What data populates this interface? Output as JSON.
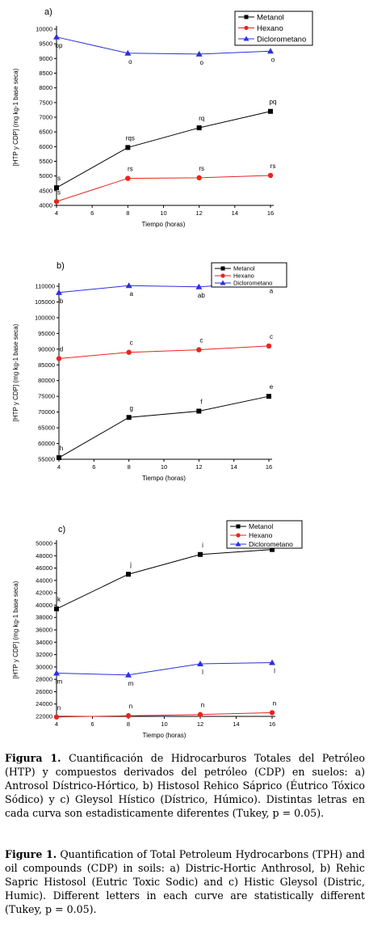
{
  "chart_data": [
    {
      "panel_label": "a)",
      "type": "line",
      "x": [
        4,
        8,
        12,
        16
      ],
      "xticks": [
        4,
        6,
        8,
        10,
        12,
        14,
        16
      ],
      "xlim": [
        4,
        16
      ],
      "ylim": [
        4000,
        10000
      ],
      "yticks": [
        4000,
        4500,
        5000,
        5500,
        6000,
        6500,
        7000,
        7500,
        8000,
        8500,
        9000,
        9500,
        10000
      ],
      "xlabel": "Tiempo (horas)",
      "ylabel": "[HTP y CDP] (mg kg-1 base seca)",
      "legend_position": "top-right",
      "series": [
        {
          "name": "Metanol",
          "color": "#000000",
          "marker": "square",
          "values": [
            4600,
            5970,
            6640,
            7200
          ],
          "point_labels": [
            "s",
            "rqs",
            "rq",
            "pq"
          ]
        },
        {
          "name": "Hexano",
          "color": "#e8251f",
          "marker": "circle",
          "values": [
            4130,
            4920,
            4940,
            5020
          ],
          "point_labels": [
            "s",
            "rs",
            "rs",
            "rs"
          ]
        },
        {
          "name": "Diclorometano",
          "color": "#2b2fe0",
          "marker": "triangle",
          "values": [
            9730,
            9180,
            9150,
            9250
          ],
          "point_labels": [
            "op",
            "o",
            "o",
            "o"
          ]
        }
      ]
    },
    {
      "panel_label": "b)",
      "type": "line",
      "x": [
        4,
        8,
        12,
        16
      ],
      "xticks": [
        4,
        6,
        8,
        10,
        12,
        14,
        16
      ],
      "xlim": [
        4,
        16
      ],
      "ylim": [
        55000,
        110000
      ],
      "yticks": [
        55000,
        60000,
        65000,
        70000,
        75000,
        80000,
        85000,
        90000,
        95000,
        100000,
        105000,
        110000
      ],
      "xlabel": "Tiempo (horas)",
      "ylabel": "[HTP y CDP] (mg kg-1 base seca)",
      "legend_position": "top-right",
      "series": [
        {
          "name": "Metanol",
          "color": "#000000",
          "marker": "square",
          "values": [
            55500,
            68300,
            70300,
            75000
          ],
          "point_labels": [
            "h",
            "g",
            "f",
            "e"
          ]
        },
        {
          "name": "Hexano",
          "color": "#e8251f",
          "marker": "circle",
          "values": [
            87000,
            89000,
            89800,
            91000
          ],
          "point_labels": [
            "d",
            "c",
            "c",
            "c"
          ]
        },
        {
          "name": "Diclorometano",
          "color": "#2b2fe0",
          "marker": "triangle",
          "values": [
            108000,
            110200,
            109800,
            111200
          ],
          "point_labels": [
            "b",
            "a",
            "ab",
            "a"
          ]
        }
      ]
    },
    {
      "panel_label": "c)",
      "type": "line",
      "x": [
        4,
        8,
        12,
        16
      ],
      "xticks": [
        4,
        6,
        8,
        10,
        12,
        14,
        16
      ],
      "xlim": [
        4,
        16
      ],
      "ylim": [
        22000,
        50000
      ],
      "yticks": [
        22000,
        24000,
        26000,
        28000,
        30000,
        32000,
        34000,
        36000,
        38000,
        40000,
        42000,
        44000,
        46000,
        48000,
        50000
      ],
      "xlabel": "Tiempo (horas)",
      "ylabel": "[HTP y CDP] (mg kg-1 base seca)",
      "legend_position": "top-right",
      "series": [
        {
          "name": "Metanol",
          "color": "#000000",
          "marker": "square",
          "values": [
            39400,
            45000,
            48200,
            49000
          ],
          "point_labels": [
            "k",
            "j",
            "i",
            "i"
          ]
        },
        {
          "name": "Hexano",
          "color": "#e8251f",
          "marker": "circle",
          "values": [
            21900,
            22100,
            22300,
            22600
          ],
          "point_labels": [
            "n",
            "n",
            "n",
            "n"
          ]
        },
        {
          "name": "Diclorometano",
          "color": "#2b2fe0",
          "marker": "triangle",
          "values": [
            29000,
            28700,
            30500,
            30700
          ],
          "point_labels": [
            "lm",
            "m",
            "l",
            "l"
          ]
        }
      ]
    }
  ],
  "caption_es": {
    "label": "Figura 1.",
    "text": "Cuantificación de Hidrocarburos Totales del Petróleo (HTP) y compuestos derivados del petróleo (CDP) en suelos: a) Antrosol Dístrico-Hórtico, b) Histosol Rehico Sáprico (Éutrico Tóxico Sódico) y c) Gleysol Hístico (Dístrico, Húmico). Distintas letras en cada curva son estadisticamente diferentes (Tukey, p = 0.05)."
  },
  "caption_en": {
    "label": "Figure 1.",
    "text": "Quantification of Total Petroleum Hydrocarbons (TPH) and oil compounds (CDP) in soils: a) Distric-Hortic Anthrosol, b) Rehic Sapric Histosol (Eutric Toxic Sodic) and c) Histic Gleysol (Distric, Humic). Different letters in each curve are statistically different (Tukey, p = 0.05)."
  }
}
